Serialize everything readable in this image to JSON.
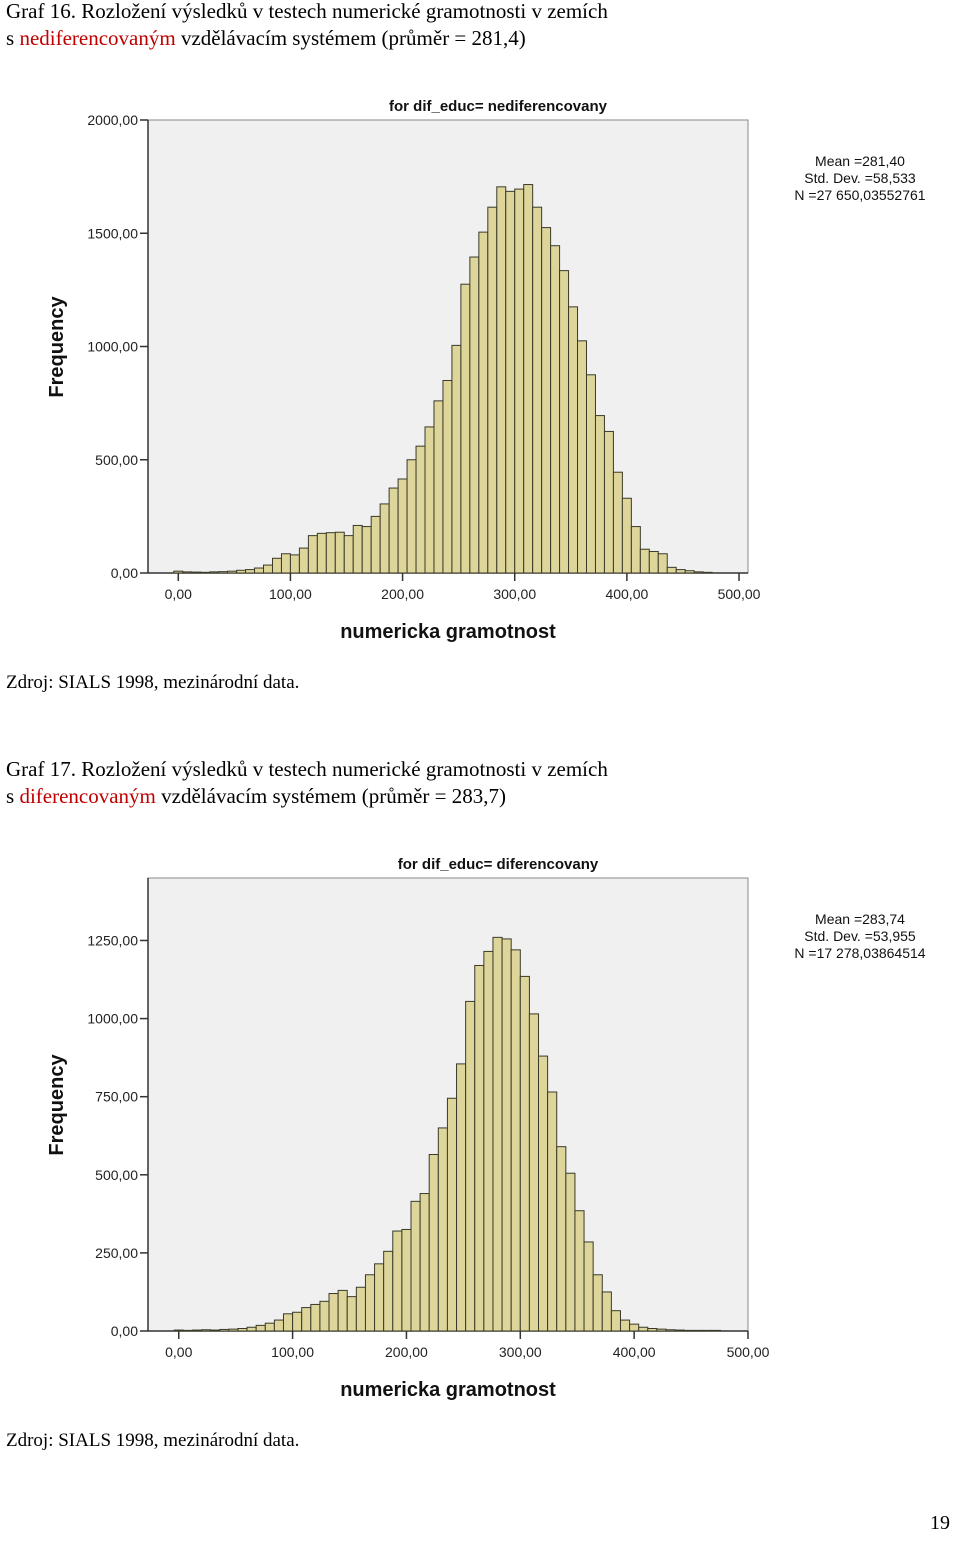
{
  "graf16": {
    "caption": {
      "line1": "Graf 16. Rozložení výsledků v testech numerické gramotnosti v zemích",
      "prefix": "s ",
      "highlight": "nediferencovaným",
      "suffix": " vzdělávacím systémem (průměr = 281,4)"
    },
    "source": "Zdroj: SIALS 1998, mezinárodní data."
  },
  "graf17": {
    "caption": {
      "line1": "Graf 17. Rozložení výsledků v testech numerické gramotnosti v zemích",
      "prefix": "s ",
      "highlight": "diferencovaným",
      "suffix": " vzdělávacím systémem (průměr = 283,7)"
    },
    "source": "Zdroj: SIALS 1998, mezinárodní data."
  },
  "page_number": "19",
  "colors": {
    "bar_fill": "#ddd59a",
    "bar_stroke": "#3a3a2a",
    "plot_bg": "#f0f0f0",
    "caption_red": "#c00000"
  },
  "chart_data": [
    {
      "type": "bar",
      "title": "for dif_educ= nediferencovany",
      "xlabel": "numericka gramotnost",
      "ylabel": "Frequency",
      "xlim": [
        -27,
        508
      ],
      "ylim": [
        0,
        2000
      ],
      "xticks": [
        0,
        100,
        200,
        300,
        400,
        500
      ],
      "xtick_labels": [
        "0,00",
        "100,00",
        "200,00",
        "300,00",
        "400,00",
        "500,00"
      ],
      "yticks": [
        0,
        500,
        1000,
        1500,
        2000
      ],
      "ytick_labels": [
        "0,00",
        "500,00",
        "1000,00",
        "1500,00",
        "2000,00"
      ],
      "stats": [
        "Mean =281,40",
        "Std. Dev. =58,533",
        "N =27 650,03552761"
      ],
      "bin_width": 8,
      "bin_start": -4,
      "values": [
        8,
        5,
        4,
        3,
        5,
        6,
        8,
        12,
        15,
        22,
        35,
        65,
        85,
        80,
        110,
        165,
        175,
        178,
        180,
        165,
        210,
        205,
        250,
        305,
        375,
        415,
        500,
        560,
        645,
        760,
        850,
        1005,
        1275,
        1395,
        1505,
        1615,
        1705,
        1685,
        1695,
        1715,
        1615,
        1525,
        1445,
        1335,
        1175,
        1025,
        875,
        695,
        625,
        445,
        330,
        205,
        105,
        95,
        85,
        25,
        15,
        10,
        5,
        3
      ]
    },
    {
      "type": "bar",
      "title": "for dif_educ= diferencovany",
      "xlabel": "numericka gramotnost",
      "ylabel": "Frequency",
      "xlim": [
        -27,
        500
      ],
      "ylim": [
        0,
        1450
      ],
      "xticks": [
        0,
        100,
        200,
        300,
        400,
        500
      ],
      "xtick_labels": [
        "0,00",
        "100,00",
        "200,00",
        "300,00",
        "400,00",
        "500,00"
      ],
      "yticks": [
        0,
        250,
        500,
        750,
        1000,
        1250
      ],
      "ytick_labels": [
        "0,00",
        "250,00",
        "500,00",
        "750,00",
        "1000,00",
        "1250,00"
      ],
      "stats": [
        "Mean =283,74",
        "Std. Dev. =53,955",
        "N =17 278,03864514"
      ],
      "bin_width": 8,
      "bin_start": -4,
      "values": [
        3,
        2,
        3,
        4,
        3,
        5,
        6,
        8,
        12,
        18,
        25,
        35,
        55,
        60,
        75,
        85,
        95,
        120,
        130,
        110,
        140,
        180,
        215,
        255,
        320,
        325,
        415,
        440,
        565,
        650,
        745,
        855,
        1055,
        1170,
        1215,
        1260,
        1255,
        1220,
        1135,
        1015,
        880,
        765,
        590,
        505,
        385,
        285,
        180,
        125,
        65,
        35,
        22,
        12,
        8,
        6,
        4,
        3,
        2,
        2,
        2,
        2
      ]
    }
  ]
}
